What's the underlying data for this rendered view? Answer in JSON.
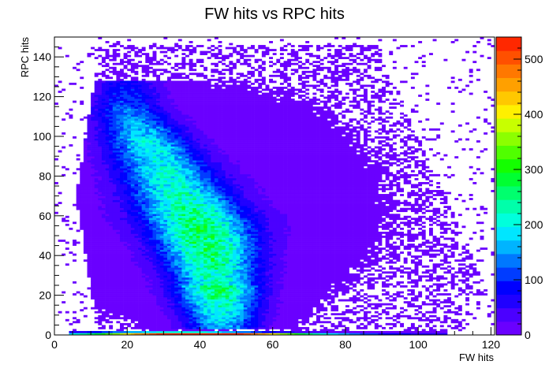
{
  "chart_data": {
    "type": "heatmap",
    "title": "FW hits vs RPC hits",
    "xlabel": "FW hits",
    "ylabel": "RPC hits",
    "xlim": [
      0,
      121
    ],
    "ylim": [
      0,
      150
    ],
    "x_ticks": [
      0,
      20,
      40,
      60,
      80,
      100,
      120
    ],
    "y_ticks": [
      0,
      20,
      40,
      60,
      80,
      100,
      120,
      140
    ],
    "colorbar": {
      "range": [
        0,
        540
      ],
      "ticks": [
        0,
        100,
        200,
        300,
        400,
        500
      ],
      "palette": [
        "#6a00ff",
        "#4b00ff",
        "#2000ff",
        "#0000ff",
        "#003cff",
        "#0078ff",
        "#00b4ff",
        "#00e6ff",
        "#00ffdc",
        "#00ffaa",
        "#00ff6e",
        "#00ff32",
        "#14ff00",
        "#50ff00",
        "#8cff00",
        "#c8ff00",
        "#fff000",
        "#ffc800",
        "#ffa000",
        "#ff7800",
        "#ff5000",
        "#ff2800"
      ]
    },
    "density_model": {
      "description": "2D histogram of event counts; dense band curving from (20,115) to (45,40), bright baseline row at RPC hits 0-1",
      "ridge_points": [
        [
          20,
          115
        ],
        [
          28,
          90
        ],
        [
          40,
          55
        ],
        [
          42,
          45
        ],
        [
          44,
          30
        ],
        [
          46,
          10
        ]
      ],
      "peak_counts": 270,
      "baseline_peak": [
        40,
        540
      ]
    },
    "grid": false,
    "legend": "none"
  }
}
